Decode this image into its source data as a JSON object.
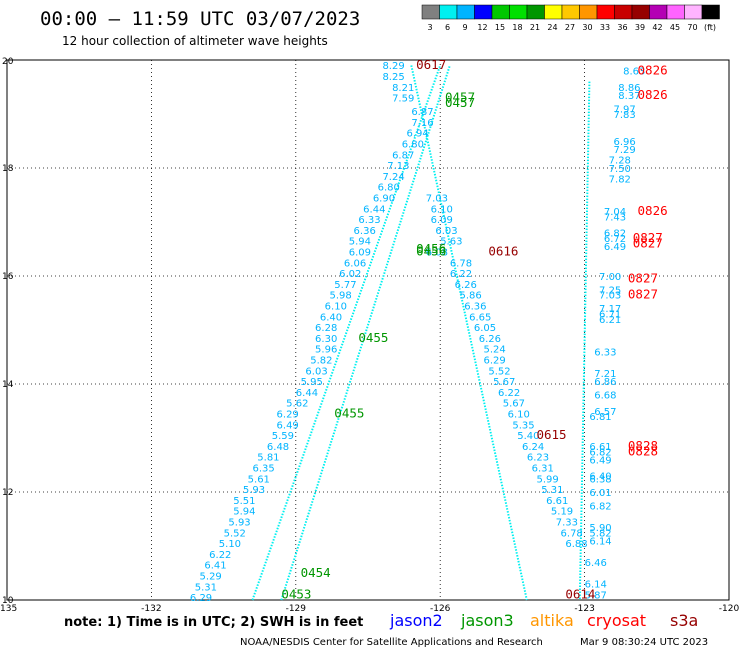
{
  "header": {
    "title": "00:00 – 11:59 UTC 03/07/2023",
    "subtitle": "12 hour collection of altimeter wave heights"
  },
  "colorbar": {
    "labels": [
      "3",
      "6",
      "9",
      "12",
      "15",
      "18",
      "21",
      "24",
      "27",
      "30",
      "33",
      "36",
      "39",
      "42",
      "45",
      "70",
      "(ft)"
    ],
    "colors": [
      "#808080",
      "#00f0f0",
      "#00b4ff",
      "#0000ff",
      "#00c800",
      "#00e000",
      "#009600",
      "#ffff00",
      "#ffc800",
      "#ff9600",
      "#ff0000",
      "#c80000",
      "#960000",
      "#b400b4",
      "#ff64ff",
      "#ffb4ff",
      "#000000"
    ]
  },
  "footer": {
    "note": "note:  1) Time is in UTC;  2) SWH is in feet",
    "legend": [
      {
        "label": "jason2",
        "color": "#0000ff"
      },
      {
        "label": "jason3",
        "color": "#009600"
      },
      {
        "label": "altika",
        "color": "#ff9600"
      },
      {
        "label": "cryosat",
        "color": "#ff0000"
      },
      {
        "label": "s3a",
        "color": "#960000"
      }
    ],
    "credit": "NOAA/NESDIS Center for Satellite Applications and Research",
    "timestamp": "Mar  9 08:30:24 UTC 2023"
  },
  "chart_data": {
    "type": "scatter",
    "xlim": [
      -135,
      -120
    ],
    "ylim": [
      10,
      20
    ],
    "x_ticks": [
      -135,
      -132,
      -129,
      -126,
      -123,
      -120
    ],
    "x_tick_labels": [
      "-135",
      "-132",
      "-129",
      "-126",
      "-123",
      "-120"
    ],
    "y_ticks": [
      10,
      12,
      14,
      16,
      18,
      20
    ],
    "y_tick_labels": [
      "10",
      "12",
      "14",
      "16",
      "18",
      "20"
    ],
    "grid": true,
    "track_color": "#00f0f0",
    "label_color": "#00b4ff",
    "tracks": [
      {
        "name": "track-a",
        "from": [
          -129.9,
          10.0
        ],
        "to": [
          -126.0,
          19.9
        ]
      },
      {
        "name": "track-b",
        "from": [
          -129.3,
          10.0
        ],
        "to": [
          -125.8,
          19.9
        ]
      },
      {
        "name": "track-c",
        "from": [
          -126.6,
          19.9
        ],
        "to": [
          -124.2,
          10.0
        ]
      },
      {
        "name": "track-d",
        "from": [
          -122.9,
          19.6
        ],
        "to": [
          -123.1,
          10.0
        ]
      }
    ],
    "swh_labels": [
      {
        "x": -127.2,
        "y": 19.83,
        "v": "8.29"
      },
      {
        "x": -127.2,
        "y": 19.63,
        "v": "8.25"
      },
      {
        "x": -127.0,
        "y": 19.43,
        "v": "8.21"
      },
      {
        "x": -127.0,
        "y": 19.23,
        "v": "7.59"
      },
      {
        "x": -126.6,
        "y": 18.98,
        "v": "6.87"
      },
      {
        "x": -126.6,
        "y": 18.78,
        "v": "7.16"
      },
      {
        "x": -126.7,
        "y": 18.58,
        "v": "6.94"
      },
      {
        "x": -126.8,
        "y": 18.38,
        "v": "6.80"
      },
      {
        "x": -127.0,
        "y": 18.18,
        "v": "6.87"
      },
      {
        "x": -127.1,
        "y": 17.98,
        "v": "7.13"
      },
      {
        "x": -127.2,
        "y": 17.78,
        "v": "7.24"
      },
      {
        "x": -127.3,
        "y": 17.58,
        "v": "6.80"
      },
      {
        "x": -127.4,
        "y": 17.38,
        "v": "6.90"
      },
      {
        "x": -127.6,
        "y": 17.18,
        "v": "6.44"
      },
      {
        "x": -127.7,
        "y": 16.98,
        "v": "6.33"
      },
      {
        "x": -127.8,
        "y": 16.78,
        "v": "6.36"
      },
      {
        "x": -127.9,
        "y": 16.58,
        "v": "5.94"
      },
      {
        "x": -127.9,
        "y": 16.38,
        "v": "6.09"
      },
      {
        "x": -128.0,
        "y": 16.18,
        "v": "6.06"
      },
      {
        "x": -128.1,
        "y": 15.98,
        "v": "6.02"
      },
      {
        "x": -128.2,
        "y": 15.78,
        "v": "5.77"
      },
      {
        "x": -128.3,
        "y": 15.58,
        "v": "5.98"
      },
      {
        "x": -128.4,
        "y": 15.38,
        "v": "6.10"
      },
      {
        "x": -128.5,
        "y": 15.18,
        "v": "6.40"
      },
      {
        "x": -128.6,
        "y": 14.98,
        "v": "6.28"
      },
      {
        "x": -128.6,
        "y": 14.78,
        "v": "6.30"
      },
      {
        "x": -128.6,
        "y": 14.58,
        "v": "5.96"
      },
      {
        "x": -128.7,
        "y": 14.38,
        "v": "5.82"
      },
      {
        "x": -128.8,
        "y": 14.18,
        "v": "6.03"
      },
      {
        "x": -128.9,
        "y": 13.98,
        "v": "5.95"
      },
      {
        "x": -129.0,
        "y": 13.78,
        "v": "6.44"
      },
      {
        "x": -129.2,
        "y": 13.58,
        "v": "5.62"
      },
      {
        "x": -129.4,
        "y": 13.38,
        "v": "6.29"
      },
      {
        "x": -129.4,
        "y": 13.18,
        "v": "6.49"
      },
      {
        "x": -129.5,
        "y": 12.98,
        "v": "5.59"
      },
      {
        "x": -129.6,
        "y": 12.78,
        "v": "6.48"
      },
      {
        "x": -129.8,
        "y": 12.58,
        "v": "5.81"
      },
      {
        "x": -129.9,
        "y": 12.38,
        "v": "6.35"
      },
      {
        "x": -130.0,
        "y": 12.18,
        "v": "5.61"
      },
      {
        "x": -130.1,
        "y": 11.98,
        "v": "5.93"
      },
      {
        "x": -130.3,
        "y": 11.78,
        "v": "5.51"
      },
      {
        "x": -130.3,
        "y": 11.58,
        "v": "5.94"
      },
      {
        "x": -130.4,
        "y": 11.38,
        "v": "5.93"
      },
      {
        "x": -130.5,
        "y": 11.18,
        "v": "5.52"
      },
      {
        "x": -130.6,
        "y": 10.98,
        "v": "5.10"
      },
      {
        "x": -130.8,
        "y": 10.78,
        "v": "6.22"
      },
      {
        "x": -130.9,
        "y": 10.58,
        "v": "6.41"
      },
      {
        "x": -131.0,
        "y": 10.38,
        "v": "5.29"
      },
      {
        "x": -131.1,
        "y": 10.18,
        "v": "5.31"
      },
      {
        "x": -131.2,
        "y": 9.98,
        "v": "6.29"
      },
      {
        "x": -126.3,
        "y": 17.38,
        "v": "7.03"
      },
      {
        "x": -126.2,
        "y": 17.18,
        "v": "6.10"
      },
      {
        "x": -126.2,
        "y": 16.98,
        "v": "6.09"
      },
      {
        "x": -126.1,
        "y": 16.78,
        "v": "6.03"
      },
      {
        "x": -126.0,
        "y": 16.58,
        "v": "5.63"
      },
      {
        "x": -126.3,
        "y": 16.38,
        "v": "6.08"
      },
      {
        "x": -125.8,
        "y": 16.18,
        "v": "6.78"
      },
      {
        "x": -125.8,
        "y": 15.98,
        "v": "6.22"
      },
      {
        "x": -125.7,
        "y": 15.78,
        "v": "6.26"
      },
      {
        "x": -125.6,
        "y": 15.58,
        "v": "5.86"
      },
      {
        "x": -125.5,
        "y": 15.38,
        "v": "6.36"
      },
      {
        "x": -125.4,
        "y": 15.18,
        "v": "6.65"
      },
      {
        "x": -125.3,
        "y": 14.98,
        "v": "6.05"
      },
      {
        "x": -125.2,
        "y": 14.78,
        "v": "6.26"
      },
      {
        "x": -125.1,
        "y": 14.58,
        "v": "5.24"
      },
      {
        "x": -125.1,
        "y": 14.38,
        "v": "6.29"
      },
      {
        "x": -125.0,
        "y": 14.18,
        "v": "5.52"
      },
      {
        "x": -124.9,
        "y": 13.98,
        "v": "5.67"
      },
      {
        "x": -124.8,
        "y": 13.78,
        "v": "6.22"
      },
      {
        "x": -124.7,
        "y": 13.58,
        "v": "5.67"
      },
      {
        "x": -124.6,
        "y": 13.38,
        "v": "6.10"
      },
      {
        "x": -124.5,
        "y": 13.18,
        "v": "5.35"
      },
      {
        "x": -124.4,
        "y": 12.98,
        "v": "5.40"
      },
      {
        "x": -124.3,
        "y": 12.78,
        "v": "6.24"
      },
      {
        "x": -124.2,
        "y": 12.58,
        "v": "6.23"
      },
      {
        "x": -124.1,
        "y": 12.38,
        "v": "6.31"
      },
      {
        "x": -124.0,
        "y": 12.18,
        "v": "5.99"
      },
      {
        "x": -123.9,
        "y": 11.98,
        "v": "5.31"
      },
      {
        "x": -123.8,
        "y": 11.78,
        "v": "6.61"
      },
      {
        "x": -123.7,
        "y": 11.58,
        "v": "5.19"
      },
      {
        "x": -123.6,
        "y": 11.38,
        "v": "7.33"
      },
      {
        "x": -123.5,
        "y": 11.18,
        "v": "6.78"
      },
      {
        "x": -123.4,
        "y": 10.98,
        "v": "6.88"
      },
      {
        "x": -122.2,
        "y": 19.73,
        "v": "8.63"
      },
      {
        "x": -122.3,
        "y": 19.43,
        "v": "8.86"
      },
      {
        "x": -122.3,
        "y": 19.28,
        "v": "8.37"
      },
      {
        "x": -122.4,
        "y": 19.03,
        "v": "7.97"
      },
      {
        "x": -122.4,
        "y": 18.93,
        "v": "7.83"
      },
      {
        "x": -122.4,
        "y": 18.43,
        "v": "6.96"
      },
      {
        "x": -122.4,
        "y": 18.28,
        "v": "7.29"
      },
      {
        "x": -122.5,
        "y": 18.08,
        "v": "7.28"
      },
      {
        "x": -122.5,
        "y": 17.93,
        "v": "7.50"
      },
      {
        "x": -122.5,
        "y": 17.73,
        "v": "7.82"
      },
      {
        "x": -122.6,
        "y": 17.13,
        "v": "7.04"
      },
      {
        "x": -122.6,
        "y": 17.03,
        "v": "7.43"
      },
      {
        "x": -122.6,
        "y": 16.73,
        "v": "6.82"
      },
      {
        "x": -122.6,
        "y": 16.63,
        "v": "6.72"
      },
      {
        "x": -122.6,
        "y": 16.48,
        "v": "6.49"
      },
      {
        "x": -122.7,
        "y": 15.93,
        "v": "7.00"
      },
      {
        "x": -122.7,
        "y": 15.68,
        "v": "7.25"
      },
      {
        "x": -122.7,
        "y": 15.58,
        "v": "7.03"
      },
      {
        "x": -122.7,
        "y": 15.33,
        "v": "7.17"
      },
      {
        "x": -122.7,
        "y": 15.23,
        "v": "6.71"
      },
      {
        "x": -122.7,
        "y": 15.13,
        "v": "6.21"
      },
      {
        "x": -122.8,
        "y": 14.53,
        "v": "6.33"
      },
      {
        "x": -122.8,
        "y": 14.13,
        "v": "7.21"
      },
      {
        "x": -122.8,
        "y": 13.98,
        "v": "6.86"
      },
      {
        "x": -122.8,
        "y": 13.73,
        "v": "6.68"
      },
      {
        "x": -122.8,
        "y": 13.43,
        "v": "6.57"
      },
      {
        "x": -122.9,
        "y": 13.33,
        "v": "6.81"
      },
      {
        "x": -122.9,
        "y": 12.78,
        "v": "6.61"
      },
      {
        "x": -122.9,
        "y": 12.68,
        "v": "6.82"
      },
      {
        "x": -122.9,
        "y": 12.53,
        "v": "6.49"
      },
      {
        "x": -122.9,
        "y": 12.23,
        "v": "6.40"
      },
      {
        "x": -122.9,
        "y": 12.18,
        "v": "6.38"
      },
      {
        "x": -122.9,
        "y": 11.93,
        "v": "6.01"
      },
      {
        "x": -122.9,
        "y": 11.68,
        "v": "6.82"
      },
      {
        "x": -122.9,
        "y": 11.28,
        "v": "5.90"
      },
      {
        "x": -122.9,
        "y": 11.18,
        "v": "5.82"
      },
      {
        "x": -122.9,
        "y": 11.03,
        "v": "6.14"
      },
      {
        "x": -123.0,
        "y": 10.63,
        "v": "6.46"
      },
      {
        "x": -123.0,
        "y": 10.23,
        "v": "6.14"
      },
      {
        "x": -123.0,
        "y": 10.03,
        "v": "5.87"
      }
    ],
    "time_labels": [
      {
        "x": -126.5,
        "y": 19.83,
        "v": "0617",
        "color": "#960000"
      },
      {
        "x": -125.9,
        "y": 19.23,
        "v": "0457",
        "color": "#009600"
      },
      {
        "x": -125.9,
        "y": 19.13,
        "v": "0457",
        "color": "#009600"
      },
      {
        "x": -121.9,
        "y": 19.73,
        "v": "0826",
        "color": "#ff0000"
      },
      {
        "x": -121.9,
        "y": 19.28,
        "v": "0826",
        "color": "#ff0000"
      },
      {
        "x": -121.9,
        "y": 17.13,
        "v": "0826",
        "color": "#ff0000"
      },
      {
        "x": -122.0,
        "y": 16.63,
        "v": "0827",
        "color": "#ff0000"
      },
      {
        "x": -122.0,
        "y": 16.53,
        "v": "0827",
        "color": "#ff0000"
      },
      {
        "x": -122.1,
        "y": 15.88,
        "v": "0827",
        "color": "#ff0000"
      },
      {
        "x": -122.1,
        "y": 15.58,
        "v": "0827",
        "color": "#ff0000"
      },
      {
        "x": -126.5,
        "y": 16.43,
        "v": "0456",
        "color": "#009600"
      },
      {
        "x": -126.5,
        "y": 16.38,
        "v": "0456",
        "color": "#009600"
      },
      {
        "x": -125.0,
        "y": 16.38,
        "v": "0616",
        "color": "#960000"
      },
      {
        "x": -127.7,
        "y": 14.78,
        "v": "0455",
        "color": "#009600"
      },
      {
        "x": -128.2,
        "y": 13.38,
        "v": "0455",
        "color": "#009600"
      },
      {
        "x": -124.0,
        "y": 12.98,
        "v": "0615",
        "color": "#960000"
      },
      {
        "x": -122.1,
        "y": 12.78,
        "v": "0828",
        "color": "#ff0000"
      },
      {
        "x": -122.1,
        "y": 12.68,
        "v": "0828",
        "color": "#ff0000"
      },
      {
        "x": -128.9,
        "y": 10.43,
        "v": "0454",
        "color": "#009600"
      },
      {
        "x": -129.3,
        "y": 10.03,
        "v": "0453",
        "color": "#009600"
      },
      {
        "x": -123.4,
        "y": 10.03,
        "v": "0614",
        "color": "#960000"
      }
    ]
  }
}
